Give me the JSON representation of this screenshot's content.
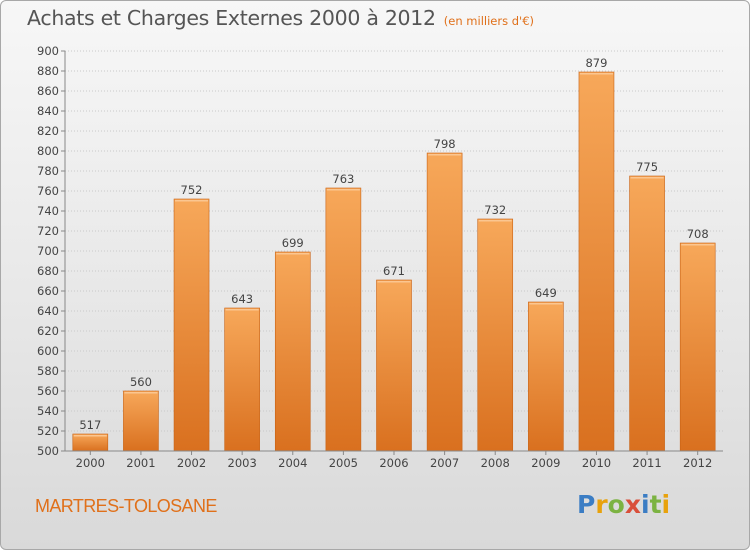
{
  "header": {
    "title": "Achats et Charges Externes 2000 à 2012",
    "unit": "(en milliers d'€)"
  },
  "footer": {
    "commune": "MARTRES-TOLOSANE",
    "logo_letters": [
      "P",
      "r",
      "o",
      "x",
      "i",
      "t",
      "i"
    ],
    "logo_colors": [
      "#3b7dc4",
      "#e8a20c",
      "#7cb342",
      "#d94f3a",
      "#3b7dc4",
      "#7cb342",
      "#e8a20c"
    ]
  },
  "colors": {
    "bar_top": "#f7a85a",
    "bar_bottom": "#d9701f",
    "bar_edge": "#c86214",
    "text": "#444444",
    "accent": "#e0701a"
  },
  "chart_data": {
    "type": "bar",
    "title": "Achats et Charges Externes 2000 à 2012",
    "subtitle": "(en milliers d'€)",
    "categories": [
      "2000",
      "2001",
      "2002",
      "2003",
      "2004",
      "2005",
      "2006",
      "2007",
      "2008",
      "2009",
      "2010",
      "2011",
      "2012"
    ],
    "values": [
      517,
      560,
      752,
      643,
      699,
      763,
      671,
      798,
      732,
      649,
      879,
      775,
      708
    ],
    "ylim": [
      500,
      900
    ],
    "ytick_step": 20,
    "xlabel": "",
    "ylabel": "",
    "grid": true,
    "data_labels": true,
    "legend": "none"
  }
}
